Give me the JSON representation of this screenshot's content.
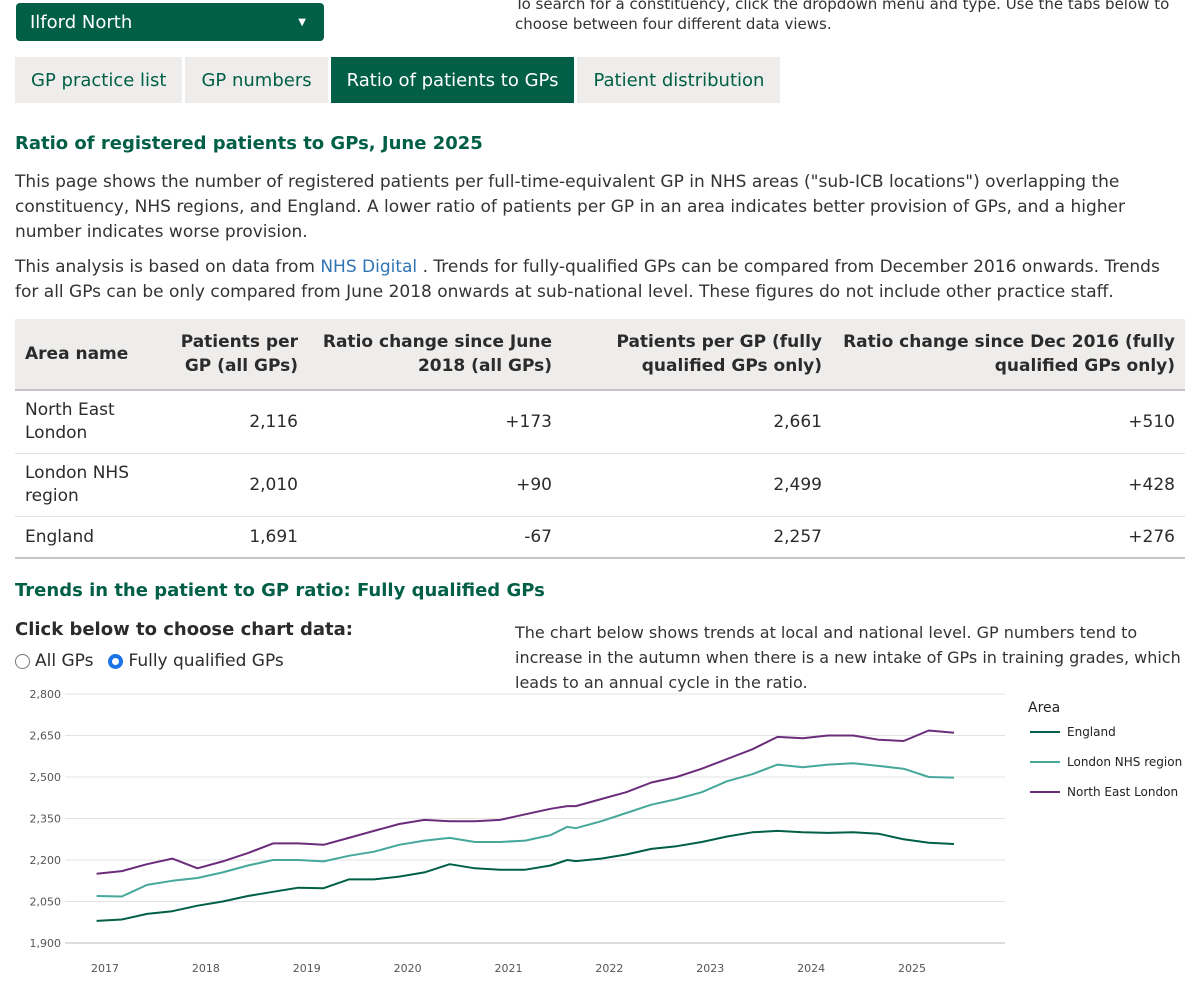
{
  "dropdown": {
    "selected": "Ilford North",
    "caret": "▼"
  },
  "search_help": "To search for a constituency, click the dropdown menu and type. Use the tabs below to choose between four different data views.",
  "tabs": [
    {
      "label": "GP practice list",
      "active": false
    },
    {
      "label": "GP numbers",
      "active": false
    },
    {
      "label": "Ratio of patients to GPs",
      "active": true
    },
    {
      "label": "Patient distribution",
      "active": false
    }
  ],
  "section1": {
    "title": "Ratio of registered patients to GPs, June 2025",
    "para1": "This page shows the number of registered patients per full-time-equivalent GP in NHS areas (\"sub-ICB locations\") overlapping the constituency, NHS regions, and England. A lower ratio of patients per GP in an area indicates better provision of GPs, and a higher number indicates worse provision.",
    "para2_before": "This analysis is based on data from ",
    "para2_link": "NHS Digital",
    "para2_after": " . Trends for fully-qualified GPs can be compared from December 2016 onwards. Trends for all GPs can be only compared from June 2018 onwards at sub-national level. These figures do not include other practice staff."
  },
  "table": {
    "headers": [
      "Area name",
      "Patients per GP (all GPs)",
      "Ratio change since June 2018 (all GPs)",
      "Patients per GP (fully qualified GPs only)",
      "Ratio change since Dec 2016 (fully qualified GPs only)"
    ],
    "rows": [
      [
        "North East London",
        "2,116",
        "+173",
        "2,661",
        "+510"
      ],
      [
        "London NHS region",
        "2,010",
        "+90",
        "2,499",
        "+428"
      ],
      [
        "England",
        "1,691",
        "-67",
        "2,257",
        "+276"
      ]
    ]
  },
  "section2": {
    "title": "Trends in the patient to GP ratio: Fully qualified GPs",
    "choose_label": "Click below to choose chart data:",
    "radio_all": "All GPs",
    "radio_fq": "Fully qualified GPs",
    "selected_radio": "fully_qualified",
    "note": "The chart below shows trends at local and national level. GP numbers tend to increase in the autumn when there is a new intake of GPs in training grades, which leads to an annual cycle in the ratio."
  },
  "chart_data": {
    "type": "line",
    "title": "",
    "xlabel": "",
    "ylabel": "",
    "x_ticks": [
      "2017",
      "2018",
      "2019",
      "2020",
      "2021",
      "2022",
      "2023",
      "2024",
      "2025"
    ],
    "y_ticks": [
      "1,900",
      "2,050",
      "2,200",
      "2,350",
      "2,500",
      "2,650",
      "2,800"
    ],
    "xlim": [
      "2016-12",
      "2025-06"
    ],
    "ylim": [
      1900,
      2800
    ],
    "grid": true,
    "legend_title": "Area",
    "legend_position": "right",
    "x": [
      "2016-12",
      "2017-03",
      "2017-06",
      "2017-09",
      "2017-12",
      "2018-03",
      "2018-06",
      "2018-09",
      "2018-12",
      "2019-03",
      "2019-06",
      "2019-09",
      "2019-12",
      "2020-03",
      "2020-06",
      "2020-09",
      "2020-12",
      "2021-03",
      "2021-06",
      "2021-08",
      "2021-09",
      "2021-12",
      "2022-03",
      "2022-06",
      "2022-09",
      "2022-12",
      "2023-03",
      "2023-06",
      "2023-09",
      "2023-12",
      "2024-03",
      "2024-06",
      "2024-09",
      "2024-12",
      "2025-03",
      "2025-06"
    ],
    "series": [
      {
        "name": "England",
        "color": "#005f46",
        "values": [
          1980,
          1985,
          2005,
          2015,
          2035,
          2050,
          2070,
          2085,
          2100,
          2098,
          2130,
          2130,
          2140,
          2155,
          2185,
          2170,
          2165,
          2165,
          2180,
          2200,
          2196,
          2205,
          2220,
          2240,
          2250,
          2265,
          2285,
          2300,
          2305,
          2300,
          2298,
          2300,
          2295,
          2275,
          2262,
          2258
        ]
      },
      {
        "name": "London NHS region",
        "color": "#45a89a",
        "values": [
          2070,
          2068,
          2110,
          2125,
          2135,
          2155,
          2180,
          2200,
          2200,
          2195,
          2215,
          2230,
          2255,
          2270,
          2280,
          2265,
          2265,
          2270,
          2290,
          2320,
          2315,
          2340,
          2370,
          2400,
          2420,
          2445,
          2485,
          2510,
          2545,
          2535,
          2545,
          2550,
          2540,
          2530,
          2500,
          2498
        ]
      },
      {
        "name": "North East London",
        "color": "#6b2d7b",
        "values": [
          2150,
          2160,
          2185,
          2205,
          2170,
          2195,
          2225,
          2260,
          2260,
          2255,
          2280,
          2305,
          2330,
          2345,
          2340,
          2340,
          2345,
          2365,
          2385,
          2395,
          2395,
          2420,
          2445,
          2480,
          2500,
          2530,
          2565,
          2600,
          2645,
          2640,
          2650,
          2650,
          2635,
          2630,
          2668,
          2660
        ]
      }
    ]
  }
}
